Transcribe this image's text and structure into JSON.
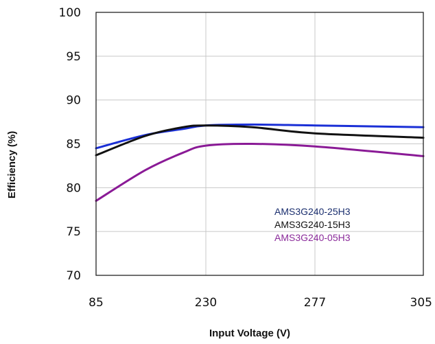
{
  "chart_data": {
    "type": "line",
    "xlabel": "Input Voltage (V)",
    "ylabel": "Efficiency (%)",
    "x_ticks": [
      "85",
      "230",
      "277",
      "305"
    ],
    "y_ticks": [
      "100",
      "95",
      "90",
      "85",
      "80",
      "75",
      "70"
    ],
    "ylim": [
      70,
      100
    ],
    "grid": true,
    "legend_position": "bottom-right",
    "series": [
      {
        "name": "AMS3G240-25H3",
        "color": "#1a2fd6",
        "legend_color": "#1a2e6e",
        "points": [
          [
            85,
            84.5
          ],
          [
            150,
            86.0
          ],
          [
            200,
            86.7
          ],
          [
            230,
            87.1
          ],
          [
            250,
            87.2
          ],
          [
            277,
            87.1
          ],
          [
            305,
            86.9
          ]
        ]
      },
      {
        "name": "AMS3G240-15H3",
        "color": "#111111",
        "legend_color": "#111111",
        "points": [
          [
            85,
            83.7
          ],
          [
            150,
            85.9
          ],
          [
            200,
            86.9
          ],
          [
            230,
            87.1
          ],
          [
            250,
            86.9
          ],
          [
            277,
            86.2
          ],
          [
            305,
            85.7
          ]
        ]
      },
      {
        "name": "AMS3G240-05H3",
        "color": "#8a1a96",
        "legend_color": "#8a2a9a",
        "points": [
          [
            85,
            78.5
          ],
          [
            150,
            82.0
          ],
          [
            200,
            84.0
          ],
          [
            230,
            84.8
          ],
          [
            250,
            85.0
          ],
          [
            277,
            84.7
          ],
          [
            305,
            83.6
          ]
        ]
      }
    ]
  }
}
